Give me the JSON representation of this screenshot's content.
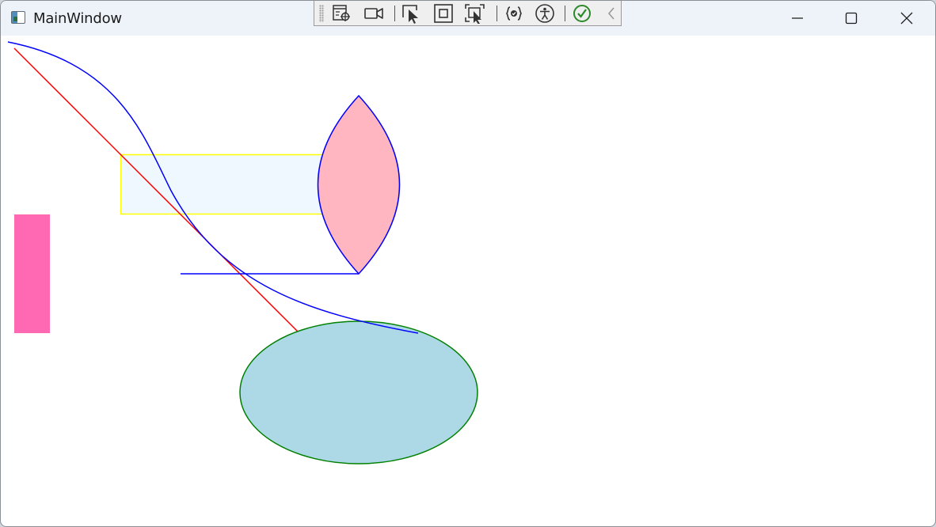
{
  "window": {
    "title": "MainWindow"
  },
  "icons": {
    "app": "window-app-icon",
    "minimize": "minimize-icon",
    "maximize": "maximize-icon",
    "close": "close-icon"
  },
  "dev_toolbar": {
    "buttons": [
      "live-visual-tree-icon",
      "camera-icon",
      "select-element-icon",
      "display-layout-adorners-icon",
      "track-focused-element-icon",
      "binding-failures-icon",
      "accessibility-checker-icon",
      "checkmark-icon",
      "collapse-chevron-icon"
    ]
  },
  "shapes": {
    "colors": {
      "red_line": "#ff0000",
      "blue_curve": "#0000ff",
      "rectangle_fill": "#f0f8ff",
      "rectangle_stroke": "#ffff00",
      "lens_fill": "#ffb6c1",
      "lens_stroke": "#0000ff",
      "ellipse_fill": "#add8e6",
      "ellipse_stroke": "#008000",
      "pink_rect": "#ff69b4"
    }
  }
}
